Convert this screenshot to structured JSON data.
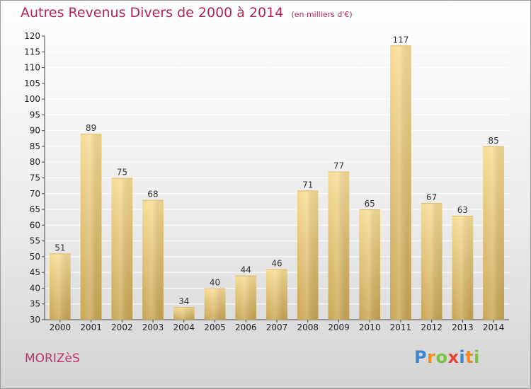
{
  "title": "Autres Revenus Divers de 2000 à 2014",
  "subtitle": "(en milliers d'€)",
  "commune": "MORIZèS",
  "logo": {
    "text": "Proxiti",
    "letters": [
      {
        "ch": "P",
        "color": "#3a86d4"
      },
      {
        "ch": "r",
        "color": "#f08c1e"
      },
      {
        "ch": "o",
        "color": "#7cc242"
      },
      {
        "ch": "x",
        "color": "#e8432e"
      },
      {
        "ch": "i",
        "color": "#3a86d4"
      },
      {
        "ch": "t",
        "color": "#f08c1e"
      },
      {
        "ch": "i",
        "color": "#7cc242"
      }
    ]
  },
  "colors": {
    "title": "#b0265a",
    "bar_top": "#f6dc94",
    "bar_bottom": "#c9a552",
    "grid": "#ffffff"
  },
  "chart_data": {
    "type": "bar",
    "categories": [
      "2000",
      "2001",
      "2002",
      "2003",
      "2004",
      "2005",
      "2006",
      "2007",
      "2008",
      "2009",
      "2010",
      "2011",
      "2012",
      "2013",
      "2014"
    ],
    "values": [
      51,
      89,
      75,
      68,
      34,
      40,
      44,
      46,
      71,
      77,
      65,
      117,
      67,
      63,
      85
    ],
    "title": "Autres Revenus Divers de 2000 à 2014",
    "subtitle": "(en milliers d'€)",
    "xlabel": "",
    "ylabel": "",
    "ylim": [
      30,
      120
    ],
    "yticks": [
      30,
      35,
      40,
      45,
      50,
      55,
      60,
      65,
      70,
      75,
      80,
      85,
      90,
      95,
      100,
      105,
      110,
      115,
      120
    ],
    "grid": true,
    "data_labels": true
  }
}
